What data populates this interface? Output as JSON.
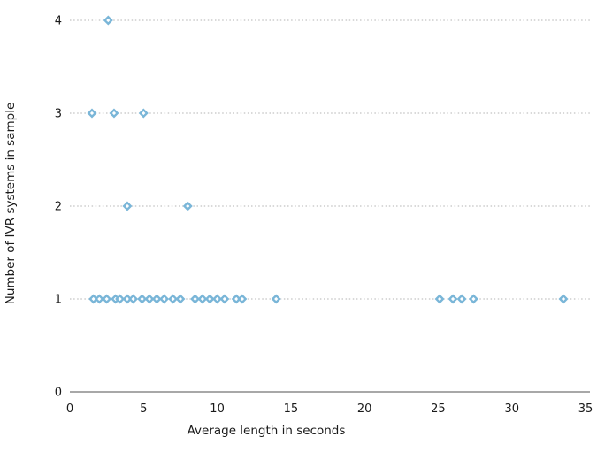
{
  "chart_data": {
    "type": "scatter",
    "title": "",
    "xlabel": "Average length in seconds",
    "ylabel": "Number of IVR systems in sample",
    "xlim": [
      0,
      35
    ],
    "ylim": [
      0,
      4.2
    ],
    "x_ticks": [
      0,
      5,
      10,
      15,
      20,
      25,
      30,
      35
    ],
    "y_ticks": [
      0,
      1,
      2,
      3,
      4
    ],
    "grid": "horizontal-dotted",
    "legend": "none",
    "marker": {
      "shape": "open-diamond",
      "color": "#7ab6d8",
      "hole_color": "#ffffff"
    },
    "colors": {
      "axis": "#8c8c8c",
      "grid": "#b3b3b3",
      "text": "#1a1a1a",
      "background": "#ffffff"
    },
    "points": [
      [
        1.6,
        1
      ],
      [
        2.0,
        1
      ],
      [
        2.5,
        1
      ],
      [
        3.1,
        1
      ],
      [
        3.4,
        1
      ],
      [
        3.9,
        1
      ],
      [
        4.3,
        1
      ],
      [
        4.9,
        1
      ],
      [
        5.4,
        1
      ],
      [
        5.9,
        1
      ],
      [
        6.4,
        1
      ],
      [
        7.0,
        1
      ],
      [
        7.5,
        1
      ],
      [
        8.5,
        1
      ],
      [
        9.0,
        1
      ],
      [
        9.5,
        1
      ],
      [
        10.0,
        1
      ],
      [
        10.5,
        1
      ],
      [
        11.3,
        1
      ],
      [
        11.7,
        1
      ],
      [
        14.0,
        1
      ],
      [
        25.1,
        1
      ],
      [
        26.0,
        1
      ],
      [
        26.6,
        1
      ],
      [
        27.4,
        1
      ],
      [
        33.5,
        1
      ],
      [
        3.9,
        2
      ],
      [
        8.0,
        2
      ],
      [
        1.5,
        3
      ],
      [
        3.0,
        3
      ],
      [
        5.0,
        3
      ],
      [
        2.6,
        4
      ]
    ]
  }
}
